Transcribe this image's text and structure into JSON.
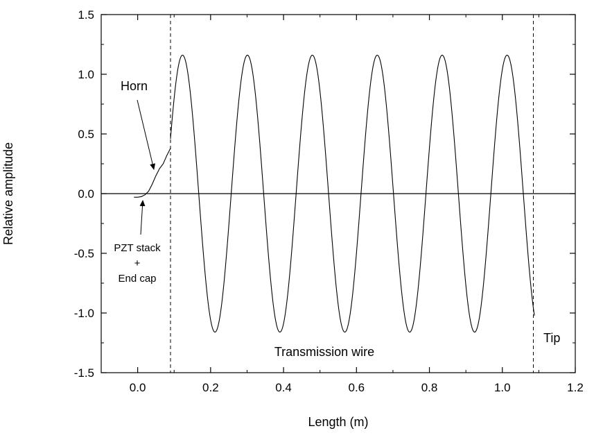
{
  "chart_data": {
    "type": "line",
    "xlabel": "Length (m)",
    "ylabel": "Relative amplitude",
    "xlim": [
      -0.1,
      1.2
    ],
    "ylim": [
      -1.5,
      1.5
    ],
    "x_ticks": [
      0.0,
      0.2,
      0.4,
      0.6,
      0.8,
      1.0,
      1.2
    ],
    "x_tick_labels": [
      "0.0",
      "0.2",
      "0.4",
      "0.6",
      "0.8",
      "1.0",
      "1.2"
    ],
    "y_ticks": [
      -1.5,
      -1.0,
      -0.5,
      0.0,
      0.5,
      1.0,
      1.5
    ],
    "y_tick_labels": [
      "-1.5",
      "-1.0",
      "-0.5",
      "0.0",
      "0.5",
      "1.0",
      "1.5"
    ],
    "grid": false,
    "zero_line": 0.0,
    "dashed_lines_x": [
      0.09,
      1.085
    ],
    "series": [
      {
        "points": [
          [
            -0.01,
            -0.03
          ],
          [
            0.0,
            -0.03
          ],
          [
            0.01,
            -0.025
          ],
          [
            0.02,
            -0.01
          ],
          [
            0.03,
            0.02
          ],
          [
            0.04,
            0.08
          ],
          [
            0.05,
            0.15
          ],
          [
            0.06,
            0.21
          ],
          [
            0.07,
            0.25
          ],
          [
            0.08,
            0.32
          ],
          [
            0.09,
            0.38
          ]
        ]
      },
      {
        "wave": {
          "x_start": 0.09,
          "x_end": 1.088,
          "amplitude": 1.16,
          "peak_x": 0.123,
          "wavelength": 0.178
        }
      }
    ],
    "annotations": {
      "horn": "Horn",
      "pzt_line1": "PZT stack",
      "pzt_line2": "+",
      "pzt_line3": "End cap",
      "transmission": "Transmission wire",
      "tip": "Tip"
    }
  }
}
